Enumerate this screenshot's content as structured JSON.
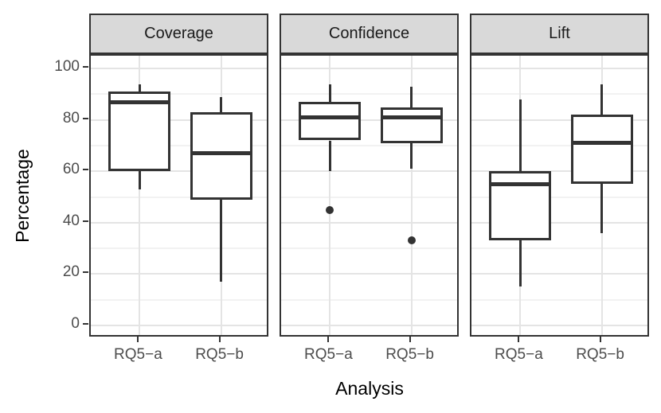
{
  "chart_data": {
    "type": "boxplot",
    "title": "",
    "xlabel": "Analysis",
    "ylabel": "Percentage",
    "categories": [
      "RQ5−a",
      "RQ5−b"
    ],
    "y_axis": {
      "min": -5,
      "max": 105,
      "major_ticks": [
        0,
        20,
        40,
        60,
        80,
        100
      ],
      "minor_ticks": [
        10,
        30,
        50,
        70,
        90
      ]
    },
    "grid": "on",
    "legend": "none",
    "facets": [
      {
        "label": "Coverage",
        "boxes": [
          {
            "category": "RQ5−a",
            "whisker_low": 53,
            "q1": 60,
            "median": 87,
            "q3": 91,
            "whisker_high": 94,
            "outliers": []
          },
          {
            "category": "RQ5−b",
            "whisker_low": 17,
            "q1": 49,
            "median": 67,
            "q3": 83,
            "whisker_high": 89,
            "outliers": []
          }
        ]
      },
      {
        "label": "Confidence",
        "boxes": [
          {
            "category": "RQ5−a",
            "whisker_low": 60,
            "q1": 72,
            "median": 81,
            "q3": 87,
            "whisker_high": 94,
            "outliers": [
              45
            ]
          },
          {
            "category": "RQ5−b",
            "whisker_low": 61,
            "q1": 71,
            "median": 81,
            "q3": 85,
            "whisker_high": 93,
            "outliers": [
              33
            ]
          }
        ]
      },
      {
        "label": "Lift",
        "boxes": [
          {
            "category": "RQ5−a",
            "whisker_low": 15,
            "q1": 33,
            "median": 55,
            "q3": 60,
            "whisker_high": 88,
            "outliers": []
          },
          {
            "category": "RQ5−b",
            "whisker_low": 36,
            "q1": 55,
            "median": 71,
            "q3": 82,
            "whisker_high": 94,
            "outliers": []
          }
        ]
      }
    ],
    "style": {
      "strip_bg": "#d9d9d9",
      "border_color": "#333333",
      "box_stroke": "#333333",
      "box_fill": "#ffffff",
      "grid_major": "#e4e4e4",
      "grid_minor": "#f2f2f2",
      "tick_label_color": "#4d4d4d",
      "axis_title_color": "#000000",
      "background": "#ffffff"
    }
  }
}
